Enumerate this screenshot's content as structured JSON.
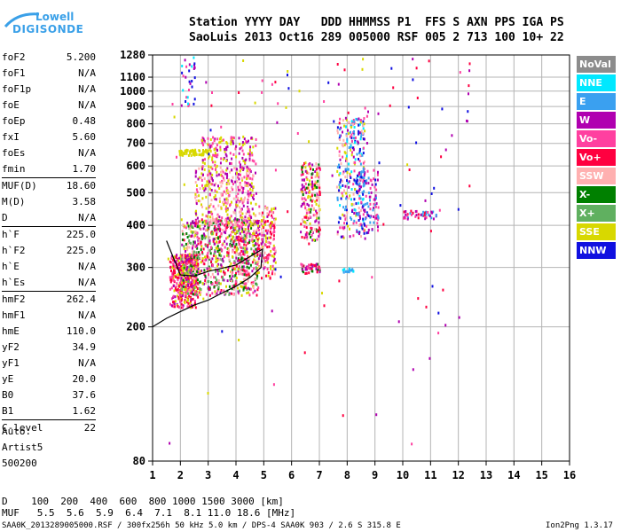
{
  "logo": {
    "line1": "Lowell",
    "line2": "DIGISONDE"
  },
  "header": {
    "line1": "Station YYYY DAY   DDD HHMMSS P1  FFS S AXN PPS IGA PS",
    "line2": "SaoLuis 2013 Oct16 289 005000 RSF 005 2 713 100 10+ 22"
  },
  "params": [
    {
      "name": "foF2",
      "value": "5.200",
      "sep": false
    },
    {
      "name": "foF1",
      "value": "N/A",
      "sep": false
    },
    {
      "name": "foF1p",
      "value": "N/A",
      "sep": false
    },
    {
      "name": "foE",
      "value": "N/A",
      "sep": false
    },
    {
      "name": "foEp",
      "value": "0.48",
      "sep": false
    },
    {
      "name": "fxI",
      "value": "5.60",
      "sep": false
    },
    {
      "name": "foEs",
      "value": "N/A",
      "sep": false
    },
    {
      "name": "fmin",
      "value": "1.70",
      "sep": false
    },
    {
      "name": "MUF(D)",
      "value": "18.60",
      "sep": true
    },
    {
      "name": "M(D)",
      "value": "3.58",
      "sep": false
    },
    {
      "name": "D",
      "value": "N/A",
      "sep": false
    },
    {
      "name": "h`F",
      "value": "225.0",
      "sep": true
    },
    {
      "name": "h`F2",
      "value": "225.0",
      "sep": false
    },
    {
      "name": "h`E",
      "value": "N/A",
      "sep": false
    },
    {
      "name": "h`Es",
      "value": "N/A",
      "sep": false
    },
    {
      "name": "hmF2",
      "value": "262.4",
      "sep": true
    },
    {
      "name": "hmF1",
      "value": "N/A",
      "sep": false
    },
    {
      "name": "hmE",
      "value": "110.0",
      "sep": false
    },
    {
      "name": "yF2",
      "value": "34.9",
      "sep": false
    },
    {
      "name": "yF1",
      "value": "N/A",
      "sep": false
    },
    {
      "name": "yE",
      "value": "20.0",
      "sep": false
    },
    {
      "name": "B0",
      "value": "37.6",
      "sep": false
    },
    {
      "name": "B1",
      "value": "1.62",
      "sep": false
    },
    {
      "name": "C-level",
      "value": "22",
      "sep": true
    }
  ],
  "auto": {
    "line1": "Auto:",
    "line2": "Artist5",
    "line3": "500200"
  },
  "footer": {
    "d_line": "D    100  200  400  600  800 1000 1500 3000 [km]",
    "muf_line": "MUF   5.5  5.6  5.9  6.4  7.1  8.1 11.0 18.6 [MHz]",
    "info_line": "SAA0K_2013289005000.RSF / 300fx256h 50 kHz 5.0 km / DPS-4 SAA0K 903 / 2.6 S 315.8 E",
    "version": "Ion2Png 1.3.17"
  },
  "legend": [
    {
      "label": "NoVal",
      "color": "#8c8c8c"
    },
    {
      "label": "NNE",
      "color": "#00e8ff"
    },
    {
      "label": "E",
      "color": "#3aa0f0"
    },
    {
      "label": "W",
      "color": "#b000b0"
    },
    {
      "label": "Vo-",
      "color": "#ff40a0"
    },
    {
      "label": "Vo+",
      "color": "#ff0040"
    },
    {
      "label": "SSW",
      "color": "#ffb0b0"
    },
    {
      "label": "X-",
      "color": "#008000"
    },
    {
      "label": "X+",
      "color": "#60b060"
    },
    {
      "label": "SSE",
      "color": "#d8d800"
    },
    {
      "label": "NNW",
      "color": "#1010e0"
    }
  ],
  "chart_data": {
    "type": "scatter",
    "xlabel": "",
    "ylabel": "",
    "xlim": [
      1,
      16
    ],
    "ylim": [
      80,
      1280
    ],
    "log_y": true,
    "x_ticks": [
      1,
      2,
      3,
      4,
      5,
      6,
      7,
      8,
      9,
      10,
      11,
      12,
      13,
      14,
      15,
      16
    ],
    "y_ticks": [
      80,
      200,
      300,
      400,
      500,
      600,
      700,
      800,
      900,
      1000,
      1100,
      1280
    ],
    "grid": true,
    "clusters": [
      {
        "x": [
          1.6,
          2.6
        ],
        "y": [
          230,
          330
        ],
        "n": 380,
        "colors": [
          "#ff0040",
          "#ff40a0",
          "#b000b0",
          "#d8d800",
          "#ff0040"
        ]
      },
      {
        "x": [
          2.0,
          4.8
        ],
        "y": [
          250,
          420
        ],
        "n": 900,
        "colors": [
          "#b000b0",
          "#ff40a0",
          "#d8d800",
          "#ff0040",
          "#ffb0b0",
          "#60b060",
          "#008000"
        ]
      },
      {
        "x": [
          2.5,
          4.7
        ],
        "y": [
          400,
          600
        ],
        "n": 380,
        "colors": [
          "#b000b0",
          "#d8d800",
          "#ff40a0",
          "#ffb0b0"
        ]
      },
      {
        "x": [
          2.7,
          4.7
        ],
        "y": [
          600,
          740
        ],
        "n": 140,
        "colors": [
          "#d8d800",
          "#b000b0",
          "#ff40a0"
        ]
      },
      {
        "x": [
          1.9,
          3.0
        ],
        "y": [
          650,
          675
        ],
        "n": 70,
        "colors": [
          "#d8d800"
        ]
      },
      {
        "x": [
          2.0,
          2.5
        ],
        "y": [
          900,
          1280
        ],
        "n": 30,
        "colors": [
          "#00e8ff",
          "#1010e0",
          "#b000b0",
          "#ff40a0"
        ]
      },
      {
        "x": [
          4.7,
          5.4
        ],
        "y": [
          280,
          460
        ],
        "n": 160,
        "colors": [
          "#d8d800",
          "#ff40a0",
          "#b000b0",
          "#ffb0b0",
          "#ff0040"
        ]
      },
      {
        "x": [
          6.3,
          7.0
        ],
        "y": [
          360,
          620
        ],
        "n": 200,
        "colors": [
          "#b000b0",
          "#ff40a0",
          "#ff0040",
          "#d8d800",
          "#008000",
          "#ffb0b0"
        ]
      },
      {
        "x": [
          6.3,
          7.0
        ],
        "y": [
          290,
          310
        ],
        "n": 50,
        "colors": [
          "#ff40a0",
          "#b000b0",
          "#ff0040",
          "#008000"
        ]
      },
      {
        "x": [
          7.6,
          8.6
        ],
        "y": [
          370,
          840
        ],
        "n": 280,
        "colors": [
          "#b000b0",
          "#ff40a0",
          "#00e8ff",
          "#1010e0",
          "#3aa0f0",
          "#ffb0b0",
          "#d8d800"
        ]
      },
      {
        "x": [
          8.3,
          9.1
        ],
        "y": [
          380,
          590
        ],
        "n": 120,
        "colors": [
          "#b000b0",
          "#ff40a0",
          "#1010e0",
          "#3aa0f0"
        ]
      },
      {
        "x": [
          7.8,
          8.2
        ],
        "y": [
          292,
          300
        ],
        "n": 18,
        "colors": [
          "#00e8ff",
          "#3aa0f0"
        ]
      },
      {
        "x": [
          10.0,
          11.2
        ],
        "y": [
          420,
          445
        ],
        "n": 45,
        "colors": [
          "#b000b0",
          "#ff40a0",
          "#ff0040",
          "#3aa0f0"
        ]
      },
      {
        "x": [
          1.5,
          12.5
        ],
        "y": [
          90,
          1280
        ],
        "n": 120,
        "colors": [
          "#b000b0",
          "#d8d800",
          "#ff40a0",
          "#ff0040",
          "#1010e0"
        ]
      }
    ],
    "trace": [
      [
        1.0,
        200
      ],
      [
        1.5,
        212
      ],
      [
        2.0,
        222
      ],
      [
        2.5,
        232
      ],
      [
        3.0,
        240
      ],
      [
        3.5,
        252
      ],
      [
        4.0,
        264
      ],
      [
        4.5,
        280
      ],
      [
        4.9,
        300
      ],
      [
        4.95,
        340
      ],
      [
        4.0,
        305
      ],
      [
        3.0,
        292
      ],
      [
        2.5,
        283
      ],
      [
        2.0,
        285
      ],
      [
        1.5,
        360
      ]
    ]
  }
}
